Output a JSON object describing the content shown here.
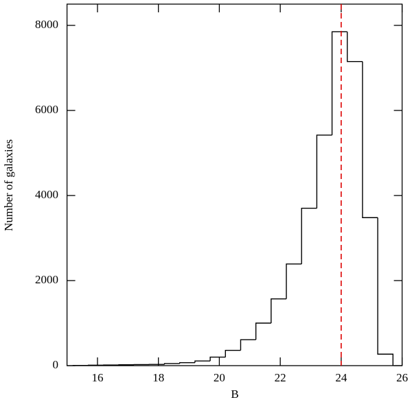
{
  "chart_data": {
    "type": "histogram",
    "x_label": "B",
    "y_label": "Number of galaxies",
    "bins": [
      15.2,
      15.7,
      16.2,
      16.7,
      17.2,
      17.7,
      18.2,
      18.7,
      19.2,
      19.7,
      20.2,
      20.7,
      21.2,
      21.7,
      22.2,
      22.7,
      23.2,
      23.7,
      24.2,
      24.7,
      25.2,
      25.7
    ],
    "values": [
      5,
      10,
      15,
      20,
      25,
      30,
      50,
      70,
      110,
      200,
      360,
      610,
      1000,
      1570,
      2390,
      3700,
      5420,
      7850,
      7150,
      3480,
      270
    ],
    "color": "#000000",
    "vline": {
      "x": 24,
      "color": "#dd0000",
      "style": "dashed"
    },
    "xlim": [
      15,
      26
    ],
    "xticks": [
      16,
      18,
      20,
      22,
      24,
      26
    ],
    "ylim": [
      0,
      8500
    ],
    "yticks": [
      0,
      2000,
      4000,
      6000,
      8000
    ]
  }
}
